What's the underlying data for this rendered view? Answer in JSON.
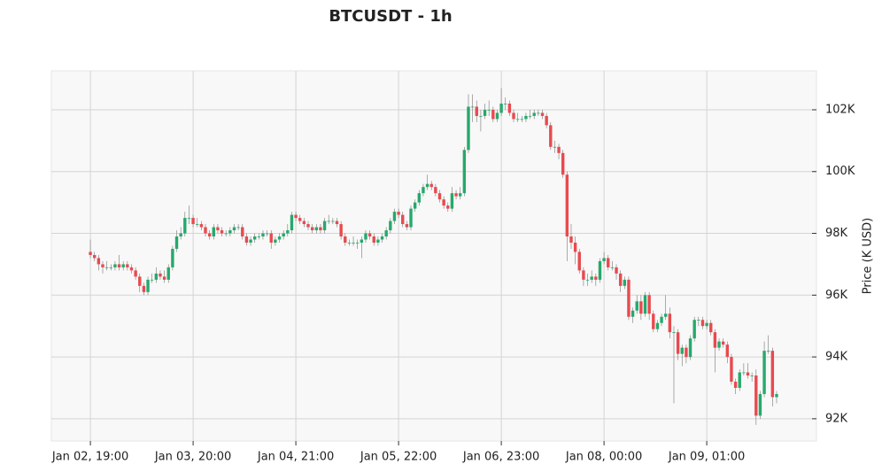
{
  "chart_data": {
    "type": "candlestick",
    "title": "BTCUSDT - 1h",
    "y_label": "Price (K USD)",
    "up_color": "#26a96c",
    "down_color": "#e84a4f",
    "grid": true,
    "xlim": [
      -9.5,
      176.7
    ],
    "xticks": [
      {
        "value": 0,
        "label": "Jan 02, 19:00"
      },
      {
        "value": 25,
        "label": "Jan 03, 20:00"
      },
      {
        "value": 50,
        "label": "Jan 04, 21:00"
      },
      {
        "value": 75,
        "label": "Jan 05, 22:00"
      },
      {
        "value": 100,
        "label": "Jan 06, 23:00"
      },
      {
        "value": 125,
        "label": "Jan 08, 00:00"
      },
      {
        "value": 150,
        "label": "Jan 09, 01:00"
      }
    ],
    "ylim": [
      91.28,
      103.26
    ],
    "yticks": [
      {
        "value": 92,
        "label": "92K"
      },
      {
        "value": 94,
        "label": "94K"
      },
      {
        "value": 96,
        "label": "96K"
      },
      {
        "value": 98,
        "label": "98K"
      },
      {
        "value": 100,
        "label": "100K"
      },
      {
        "value": 102,
        "label": "102K"
      }
    ],
    "ohlc": [
      [
        97.4,
        97.8,
        97.2,
        97.3
      ],
      [
        97.3,
        97.4,
        97.1,
        97.2
      ],
      [
        97.2,
        97.3,
        96.8,
        97.0
      ],
      [
        97.0,
        97.1,
        96.7,
        96.9
      ],
      [
        96.9,
        97.1,
        96.8,
        96.9
      ],
      [
        96.9,
        97.0,
        96.8,
        96.9
      ],
      [
        96.9,
        97.1,
        96.8,
        97.0
      ],
      [
        97.0,
        97.3,
        96.8,
        96.9
      ],
      [
        96.9,
        97.1,
        96.8,
        97.0
      ],
      [
        97.0,
        97.1,
        96.8,
        96.9
      ],
      [
        96.9,
        97.0,
        96.7,
        96.8
      ],
      [
        96.8,
        96.9,
        96.5,
        96.6
      ],
      [
        96.6,
        96.7,
        96.1,
        96.3
      ],
      [
        96.3,
        96.4,
        96.0,
        96.1
      ],
      [
        96.1,
        96.6,
        96.0,
        96.5
      ],
      [
        96.5,
        96.7,
        96.4,
        96.5
      ],
      [
        96.5,
        96.9,
        96.4,
        96.7
      ],
      [
        96.7,
        96.8,
        96.5,
        96.6
      ],
      [
        96.6,
        96.8,
        96.4,
        96.5
      ],
      [
        96.5,
        97.0,
        96.4,
        96.9
      ],
      [
        96.9,
        97.6,
        96.8,
        97.5
      ],
      [
        97.5,
        98.1,
        97.4,
        97.9
      ],
      [
        97.9,
        98.2,
        97.8,
        98.0
      ],
      [
        98.0,
        98.7,
        97.9,
        98.5
      ],
      [
        98.5,
        98.9,
        98.3,
        98.5
      ],
      [
        98.5,
        98.6,
        98.2,
        98.3
      ],
      [
        98.3,
        98.5,
        98.2,
        98.3
      ],
      [
        98.3,
        98.4,
        98.1,
        98.2
      ],
      [
        98.2,
        98.3,
        97.9,
        98.0
      ],
      [
        98.0,
        98.1,
        97.8,
        97.9
      ],
      [
        97.9,
        98.3,
        97.8,
        98.2
      ],
      [
        98.2,
        98.3,
        98.0,
        98.1
      ],
      [
        98.1,
        98.2,
        97.9,
        98.0
      ],
      [
        98.0,
        98.1,
        97.9,
        98.0
      ],
      [
        98.0,
        98.2,
        97.9,
        98.1
      ],
      [
        98.1,
        98.3,
        98.0,
        98.2
      ],
      [
        98.2,
        98.3,
        98.1,
        98.2
      ],
      [
        98.2,
        98.3,
        97.8,
        97.9
      ],
      [
        97.9,
        98.0,
        97.6,
        97.7
      ],
      [
        97.7,
        97.9,
        97.6,
        97.8
      ],
      [
        97.8,
        98.0,
        97.7,
        97.9
      ],
      [
        97.9,
        98.0,
        97.8,
        97.9
      ],
      [
        97.9,
        98.1,
        97.8,
        98.0
      ],
      [
        98.0,
        98.1,
        97.9,
        98.0
      ],
      [
        98.0,
        98.1,
        97.5,
        97.7
      ],
      [
        97.7,
        97.9,
        97.6,
        97.8
      ],
      [
        97.8,
        98.0,
        97.7,
        97.9
      ],
      [
        97.9,
        98.1,
        97.8,
        98.0
      ],
      [
        98.0,
        98.3,
        97.9,
        98.1
      ],
      [
        98.1,
        98.7,
        98.0,
        98.6
      ],
      [
        98.6,
        98.7,
        98.4,
        98.5
      ],
      [
        98.5,
        98.6,
        98.3,
        98.4
      ],
      [
        98.4,
        98.5,
        98.2,
        98.3
      ],
      [
        98.3,
        98.4,
        98.1,
        98.2
      ],
      [
        98.2,
        98.3,
        98.0,
        98.1
      ],
      [
        98.1,
        98.3,
        98.0,
        98.2
      ],
      [
        98.2,
        98.3,
        98.0,
        98.1
      ],
      [
        98.1,
        98.5,
        98.0,
        98.4
      ],
      [
        98.4,
        98.6,
        98.3,
        98.4
      ],
      [
        98.4,
        98.5,
        98.3,
        98.4
      ],
      [
        98.4,
        98.5,
        98.2,
        98.3
      ],
      [
        98.3,
        98.4,
        97.8,
        97.9
      ],
      [
        97.9,
        98.0,
        97.6,
        97.7
      ],
      [
        97.7,
        97.8,
        97.6,
        97.7
      ],
      [
        97.7,
        97.9,
        97.6,
        97.7
      ],
      [
        97.7,
        97.8,
        97.5,
        97.7
      ],
      [
        97.7,
        97.9,
        97.2,
        97.8
      ],
      [
        97.8,
        98.1,
        97.7,
        98.0
      ],
      [
        98.0,
        98.1,
        97.8,
        97.9
      ],
      [
        97.9,
        98.0,
        97.6,
        97.7
      ],
      [
        97.7,
        97.9,
        97.6,
        97.8
      ],
      [
        97.8,
        98.0,
        97.7,
        97.9
      ],
      [
        97.9,
        98.2,
        97.8,
        98.1
      ],
      [
        98.1,
        98.5,
        98.0,
        98.4
      ],
      [
        98.4,
        98.8,
        98.3,
        98.7
      ],
      [
        98.7,
        98.8,
        98.5,
        98.6
      ],
      [
        98.6,
        98.7,
        98.2,
        98.3
      ],
      [
        98.3,
        98.4,
        98.1,
        98.2
      ],
      [
        98.2,
        98.9,
        98.1,
        98.8
      ],
      [
        98.8,
        99.1,
        98.7,
        99.0
      ],
      [
        99.0,
        99.4,
        98.9,
        99.3
      ],
      [
        99.3,
        99.6,
        99.2,
        99.5
      ],
      [
        99.5,
        99.9,
        99.4,
        99.6
      ],
      [
        99.6,
        99.7,
        99.4,
        99.5
      ],
      [
        99.5,
        99.6,
        99.2,
        99.3
      ],
      [
        99.3,
        99.4,
        99.0,
        99.1
      ],
      [
        99.1,
        99.2,
        98.8,
        98.9
      ],
      [
        98.9,
        99.0,
        98.7,
        98.8
      ],
      [
        98.8,
        99.5,
        98.7,
        99.3
      ],
      [
        99.3,
        99.4,
        99.1,
        99.2
      ],
      [
        99.2,
        99.5,
        99.1,
        99.3
      ],
      [
        99.3,
        100.8,
        99.2,
        100.7
      ],
      [
        100.7,
        102.5,
        100.6,
        102.1
      ],
      [
        102.1,
        102.5,
        101.6,
        102.1
      ],
      [
        102.1,
        102.3,
        101.6,
        101.8
      ],
      [
        101.8,
        102.0,
        101.3,
        101.8
      ],
      [
        101.8,
        102.2,
        101.7,
        102.0
      ],
      [
        102.0,
        102.3,
        101.8,
        102.0
      ],
      [
        102.0,
        102.1,
        101.6,
        101.7
      ],
      [
        101.7,
        102.0,
        101.6,
        101.9
      ],
      [
        101.9,
        102.7,
        101.8,
        102.2
      ],
      [
        102.2,
        102.4,
        102.0,
        102.2
      ],
      [
        102.2,
        102.3,
        101.8,
        101.9
      ],
      [
        101.9,
        102.0,
        101.6,
        101.7
      ],
      [
        101.7,
        101.9,
        101.6,
        101.7
      ],
      [
        101.7,
        101.8,
        101.6,
        101.7
      ],
      [
        101.7,
        101.9,
        101.6,
        101.8
      ],
      [
        101.8,
        102.0,
        101.7,
        101.8
      ],
      [
        101.8,
        102.0,
        101.7,
        101.9
      ],
      [
        101.9,
        102.0,
        101.8,
        101.9
      ],
      [
        101.9,
        102.0,
        101.7,
        101.8
      ],
      [
        101.8,
        101.9,
        101.4,
        101.5
      ],
      [
        101.5,
        101.6,
        100.7,
        100.8
      ],
      [
        100.8,
        101.0,
        100.6,
        100.8
      ],
      [
        100.8,
        100.9,
        100.4,
        100.6
      ],
      [
        100.6,
        100.7,
        99.8,
        99.9
      ],
      [
        99.9,
        100.0,
        97.1,
        97.9
      ],
      [
        97.9,
        98.3,
        97.5,
        97.7
      ],
      [
        97.7,
        97.9,
        97.0,
        97.4
      ],
      [
        97.4,
        97.5,
        96.7,
        96.8
      ],
      [
        96.8,
        96.9,
        96.3,
        96.5
      ],
      [
        96.5,
        96.7,
        96.3,
        96.5
      ],
      [
        96.5,
        96.8,
        96.4,
        96.6
      ],
      [
        96.6,
        96.7,
        96.3,
        96.5
      ],
      [
        96.5,
        97.2,
        96.4,
        97.1
      ],
      [
        97.1,
        97.4,
        97.0,
        97.2
      ],
      [
        97.2,
        97.3,
        96.8,
        96.9
      ],
      [
        96.9,
        97.1,
        96.8,
        96.9
      ],
      [
        96.9,
        97.0,
        96.5,
        96.7
      ],
      [
        96.7,
        96.8,
        96.1,
        96.3
      ],
      [
        96.3,
        96.6,
        96.2,
        96.5
      ],
      [
        96.5,
        96.6,
        95.2,
        95.3
      ],
      [
        95.3,
        95.6,
        95.1,
        95.5
      ],
      [
        95.5,
        96.0,
        95.4,
        95.8
      ],
      [
        95.8,
        96.0,
        95.2,
        95.4
      ],
      [
        95.4,
        96.1,
        95.3,
        96.0
      ],
      [
        96.0,
        96.1,
        95.2,
        95.4
      ],
      [
        95.4,
        95.5,
        94.8,
        94.9
      ],
      [
        94.9,
        95.2,
        94.8,
        95.1
      ],
      [
        95.1,
        95.4,
        95.0,
        95.3
      ],
      [
        95.3,
        96.0,
        95.2,
        95.4
      ],
      [
        95.4,
        95.6,
        94.6,
        94.8
      ],
      [
        94.8,
        95.0,
        92.5,
        94.8
      ],
      [
        94.8,
        94.9,
        93.9,
        94.1
      ],
      [
        94.1,
        94.4,
        93.7,
        94.3
      ],
      [
        94.3,
        94.4,
        93.8,
        94.0
      ],
      [
        94.0,
        94.7,
        93.9,
        94.6
      ],
      [
        94.6,
        95.3,
        94.5,
        95.2
      ],
      [
        95.2,
        95.3,
        95.0,
        95.2
      ],
      [
        95.2,
        95.3,
        94.9,
        95.0
      ],
      [
        95.0,
        95.2,
        94.9,
        95.1
      ],
      [
        95.1,
        95.2,
        94.7,
        94.8
      ],
      [
        94.8,
        94.9,
        93.5,
        94.3
      ],
      [
        94.3,
        94.6,
        94.2,
        94.5
      ],
      [
        94.5,
        94.6,
        94.3,
        94.4
      ],
      [
        94.4,
        94.5,
        93.8,
        94.0
      ],
      [
        94.0,
        94.1,
        93.1,
        93.2
      ],
      [
        93.2,
        93.3,
        92.8,
        93.0
      ],
      [
        93.0,
        93.6,
        92.9,
        93.5
      ],
      [
        93.5,
        93.8,
        93.4,
        93.5
      ],
      [
        93.5,
        93.8,
        93.3,
        93.4
      ],
      [
        93.4,
        93.5,
        93.2,
        93.4
      ],
      [
        93.4,
        93.6,
        91.8,
        92.1
      ],
      [
        92.1,
        92.9,
        92.0,
        92.8
      ],
      [
        92.8,
        94.5,
        92.7,
        94.2
      ],
      [
        94.2,
        94.7,
        94.1,
        94.2
      ],
      [
        94.2,
        94.3,
        92.4,
        92.7
      ],
      [
        92.7,
        92.9,
        92.5,
        92.8
      ]
    ]
  }
}
